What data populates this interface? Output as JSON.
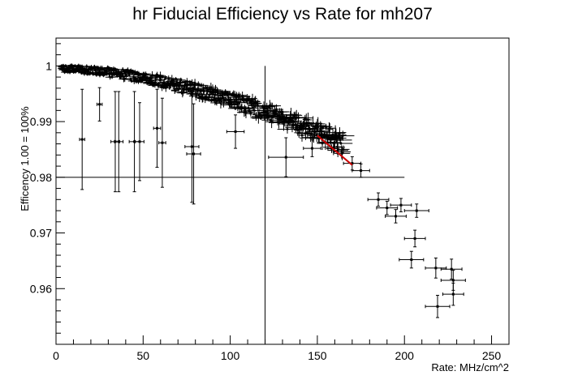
{
  "chart_data": {
    "type": "scatter",
    "title": "hr Fiducial Efficiency vs Rate  for mh207",
    "xlabel": "Rate: MHz/cm^2",
    "ylabel": "Efficency 1.00 = 100%",
    "xlim": [
      0,
      260
    ],
    "ylim": [
      0.95,
      1.005
    ],
    "x_ticks": [
      0,
      50,
      100,
      150,
      200,
      250
    ],
    "x_tick_labels": [
      "0",
      "50",
      "100",
      "150",
      "200",
      "250"
    ],
    "y_ticks": [
      0.96,
      0.97,
      0.98,
      0.99,
      1.0
    ],
    "y_tick_labels": [
      "0.96",
      "0.97",
      "0.98",
      "0.99",
      "1"
    ],
    "grid": false,
    "reference_lines": {
      "horizontal": {
        "y": 0.98,
        "x_from": 0,
        "x_to": 200
      },
      "vertical": {
        "x": 120,
        "y_from": 0.95,
        "y_to": 1.0
      }
    },
    "fit_line": {
      "x": [
        150,
        170
      ],
      "y": [
        0.9875,
        0.9822
      ],
      "color": "#cc0000"
    },
    "dense_band_note_free": true,
    "band": {
      "x_from": 3,
      "x_to": 165,
      "y_start": 0.9995,
      "y_end": 0.986,
      "spread": 0.0025
    },
    "outliers": [
      {
        "x": 15,
        "y": 0.9868,
        "xerr": 1.5,
        "yerr": 0.009
      },
      {
        "x": 25,
        "y": 0.9931,
        "xerr": 1.5,
        "yerr": 0.003
      },
      {
        "x": 34,
        "y": 0.9864,
        "xerr": 2.5,
        "yerr": 0.009
      },
      {
        "x": 36,
        "y": 0.9864,
        "xerr": 2.5,
        "yerr": 0.009
      },
      {
        "x": 45,
        "y": 0.9864,
        "xerr": 3,
        "yerr": 0.009
      },
      {
        "x": 48,
        "y": 0.9864,
        "xerr": 2.5,
        "yerr": 0.007
      },
      {
        "x": 58,
        "y": 0.9888,
        "xerr": 2,
        "yerr": 0.007
      },
      {
        "x": 61,
        "y": 0.9862,
        "xerr": 2,
        "yerr": 0.008
      },
      {
        "x": 78,
        "y": 0.9855,
        "xerr": 4,
        "yerr": 0.01
      },
      {
        "x": 79,
        "y": 0.9842,
        "xerr": 4,
        "yerr": 0.009
      },
      {
        "x": 103,
        "y": 0.9882,
        "xerr": 5,
        "yerr": 0.003
      },
      {
        "x": 132,
        "y": 0.9836,
        "xerr": 10,
        "yerr": 0.0035
      },
      {
        "x": 147,
        "y": 0.9852,
        "xerr": 5,
        "yerr": 0.0015
      },
      {
        "x": 170,
        "y": 0.9825,
        "xerr": 5,
        "yerr": 0.0012
      },
      {
        "x": 175,
        "y": 0.9812,
        "xerr": 5,
        "yerr": 0.0012
      },
      {
        "x": 185,
        "y": 0.976,
        "xerr": 6,
        "yerr": 0.0012
      },
      {
        "x": 190,
        "y": 0.9745,
        "xerr": 6,
        "yerr": 0.0012
      },
      {
        "x": 195,
        "y": 0.973,
        "xerr": 6,
        "yerr": 0.0012
      },
      {
        "x": 198,
        "y": 0.975,
        "xerr": 6,
        "yerr": 0.0012
      },
      {
        "x": 207,
        "y": 0.974,
        "xerr": 7,
        "yerr": 0.0012
      },
      {
        "x": 206,
        "y": 0.969,
        "xerr": 6,
        "yerr": 0.0015
      },
      {
        "x": 204,
        "y": 0.9652,
        "xerr": 7,
        "yerr": 0.0015
      },
      {
        "x": 218,
        "y": 0.9637,
        "xerr": 6,
        "yerr": 0.0018
      },
      {
        "x": 228,
        "y": 0.9615,
        "xerr": 7,
        "yerr": 0.0018
      },
      {
        "x": 227,
        "y": 0.9635,
        "xerr": 6,
        "yerr": 0.0018
      },
      {
        "x": 228,
        "y": 0.959,
        "xerr": 6,
        "yerr": 0.002
      },
      {
        "x": 219,
        "y": 0.9568,
        "xerr": 7,
        "yerr": 0.002
      }
    ]
  }
}
